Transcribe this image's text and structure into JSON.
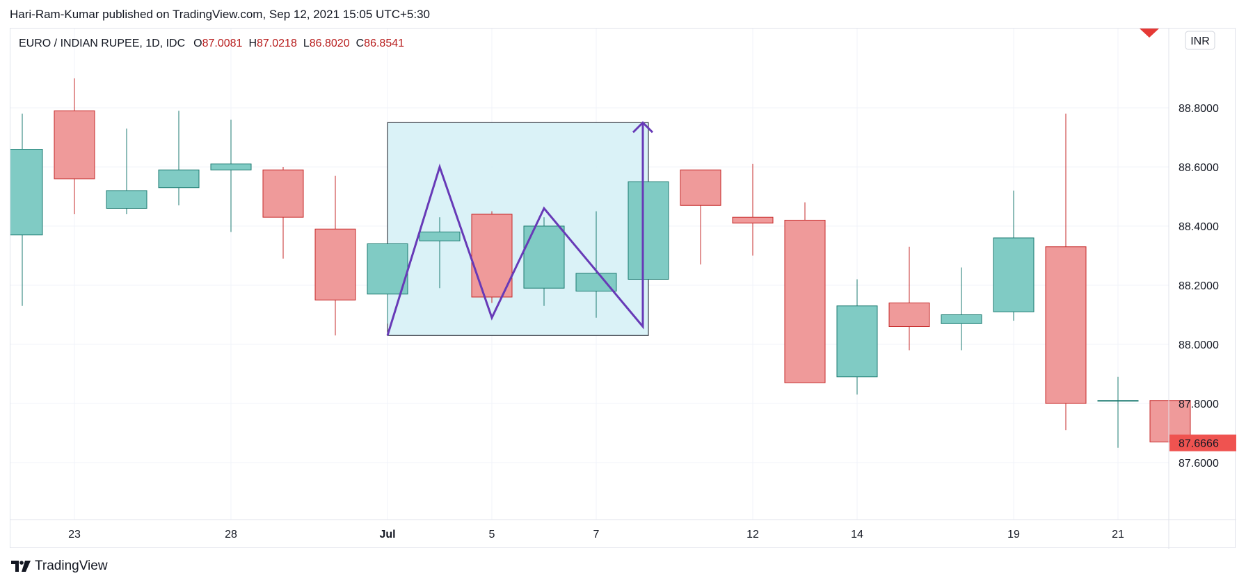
{
  "header": {
    "published": "Hari-Ram-Kumar published on TradingView.com, Sep 12, 2021 15:05 UTC+5:30"
  },
  "legend": {
    "symbol": "EURO / INDIAN RUPEE, 1D, IDC",
    "open_label": "O",
    "open": "87.0081",
    "high_label": "H",
    "high": "87.0218",
    "low_label": "L",
    "low": "86.8020",
    "close_label": "C",
    "close": "86.8541"
  },
  "currency_badge": "INR",
  "last_price_label": "87.6666",
  "footer": {
    "brand": "TradingView",
    "logo_icon": "tradingview-logo-icon"
  },
  "colors": {
    "up": "#26a69a",
    "down": "#ef5350",
    "up_fill": "#80cbc4",
    "down_fill": "#ef9a9a",
    "pattern": "#673ab7",
    "box_fill": "#d6f1f6"
  },
  "chart_data": {
    "type": "candlestick",
    "title": "",
    "xlabel": "",
    "ylabel": "",
    "ylim": [
      87.4,
      89.0
    ],
    "y_ticks": [
      "88.8000",
      "88.6000",
      "88.4000",
      "88.2000",
      "88.0000",
      "87.8000",
      "87.6000"
    ],
    "y_tick_values": [
      88.8,
      88.6,
      88.4,
      88.2,
      88.0,
      87.8,
      87.6
    ],
    "x_ticks": [
      {
        "label": "23",
        "index": 1
      },
      {
        "label": "28",
        "index": 4
      },
      {
        "label": "Jul",
        "index": 7
      },
      {
        "label": "5",
        "index": 9
      },
      {
        "label": "7",
        "index": 11
      },
      {
        "label": "12",
        "index": 14
      },
      {
        "label": "14",
        "index": 16
      },
      {
        "label": "19",
        "index": 19
      },
      {
        "label": "21",
        "index": 21
      }
    ],
    "candles": [
      {
        "index": 0,
        "o": 88.37,
        "h": 88.78,
        "l": 88.13,
        "c": 88.66
      },
      {
        "index": 1,
        "o": 88.79,
        "h": 88.9,
        "l": 88.44,
        "c": 88.56
      },
      {
        "index": 2,
        "o": 88.46,
        "h": 88.73,
        "l": 88.44,
        "c": 88.52
      },
      {
        "index": 3,
        "o": 88.53,
        "h": 88.79,
        "l": 88.47,
        "c": 88.59
      },
      {
        "index": 4,
        "o": 88.59,
        "h": 88.76,
        "l": 88.38,
        "c": 88.61
      },
      {
        "index": 5,
        "o": 88.59,
        "h": 88.6,
        "l": 88.29,
        "c": 88.43
      },
      {
        "index": 6,
        "o": 88.39,
        "h": 88.57,
        "l": 88.03,
        "c": 88.15
      },
      {
        "index": 7,
        "o": 88.17,
        "h": 88.34,
        "l": 88.07,
        "c": 88.34
      },
      {
        "index": 8,
        "o": 88.35,
        "h": 88.43,
        "l": 88.19,
        "c": 88.38
      },
      {
        "index": 9,
        "o": 88.44,
        "h": 88.45,
        "l": 88.14,
        "c": 88.16
      },
      {
        "index": 10,
        "o": 88.19,
        "h": 88.43,
        "l": 88.13,
        "c": 88.4
      },
      {
        "index": 11,
        "o": 88.18,
        "h": 88.45,
        "l": 88.09,
        "c": 88.24
      },
      {
        "index": 12,
        "o": 88.22,
        "h": 88.55,
        "l": 88.22,
        "c": 88.55
      },
      {
        "index": 13,
        "o": 88.59,
        "h": 88.59,
        "l": 88.27,
        "c": 88.47
      },
      {
        "index": 14,
        "o": 88.43,
        "h": 88.61,
        "l": 88.3,
        "c": 88.41
      },
      {
        "index": 15,
        "o": 88.42,
        "h": 88.48,
        "l": 87.87,
        "c": 87.87
      },
      {
        "index": 16,
        "o": 87.89,
        "h": 88.22,
        "l": 87.83,
        "c": 88.13
      },
      {
        "index": 17,
        "o": 88.14,
        "h": 88.33,
        "l": 87.98,
        "c": 88.06
      },
      {
        "index": 18,
        "o": 88.07,
        "h": 88.26,
        "l": 87.98,
        "c": 88.1
      },
      {
        "index": 19,
        "o": 88.11,
        "h": 88.52,
        "l": 88.08,
        "c": 88.36
      },
      {
        "index": 20,
        "o": 88.33,
        "h": 88.78,
        "l": 87.71,
        "c": 87.8
      },
      {
        "index": 21,
        "o": 87.81,
        "h": 87.89,
        "l": 87.65,
        "c": 87.81
      },
      {
        "index": 22,
        "o": 87.81,
        "h": 87.81,
        "l": 87.67,
        "c": 87.67
      }
    ],
    "last_price": 87.6666,
    "pattern_box": {
      "x0": 7,
      "x1": 12,
      "y_low": 88.03,
      "y_high": 88.75
    },
    "pattern_path": [
      {
        "x": 7,
        "y": 88.03
      },
      {
        "x": 8,
        "y": 88.6
      },
      {
        "x": 9,
        "y": 88.09
      },
      {
        "x": 10,
        "y": 88.46
      },
      {
        "x": 12,
        "y": 88.06
      },
      {
        "x": 12,
        "y": 88.75
      }
    ]
  }
}
